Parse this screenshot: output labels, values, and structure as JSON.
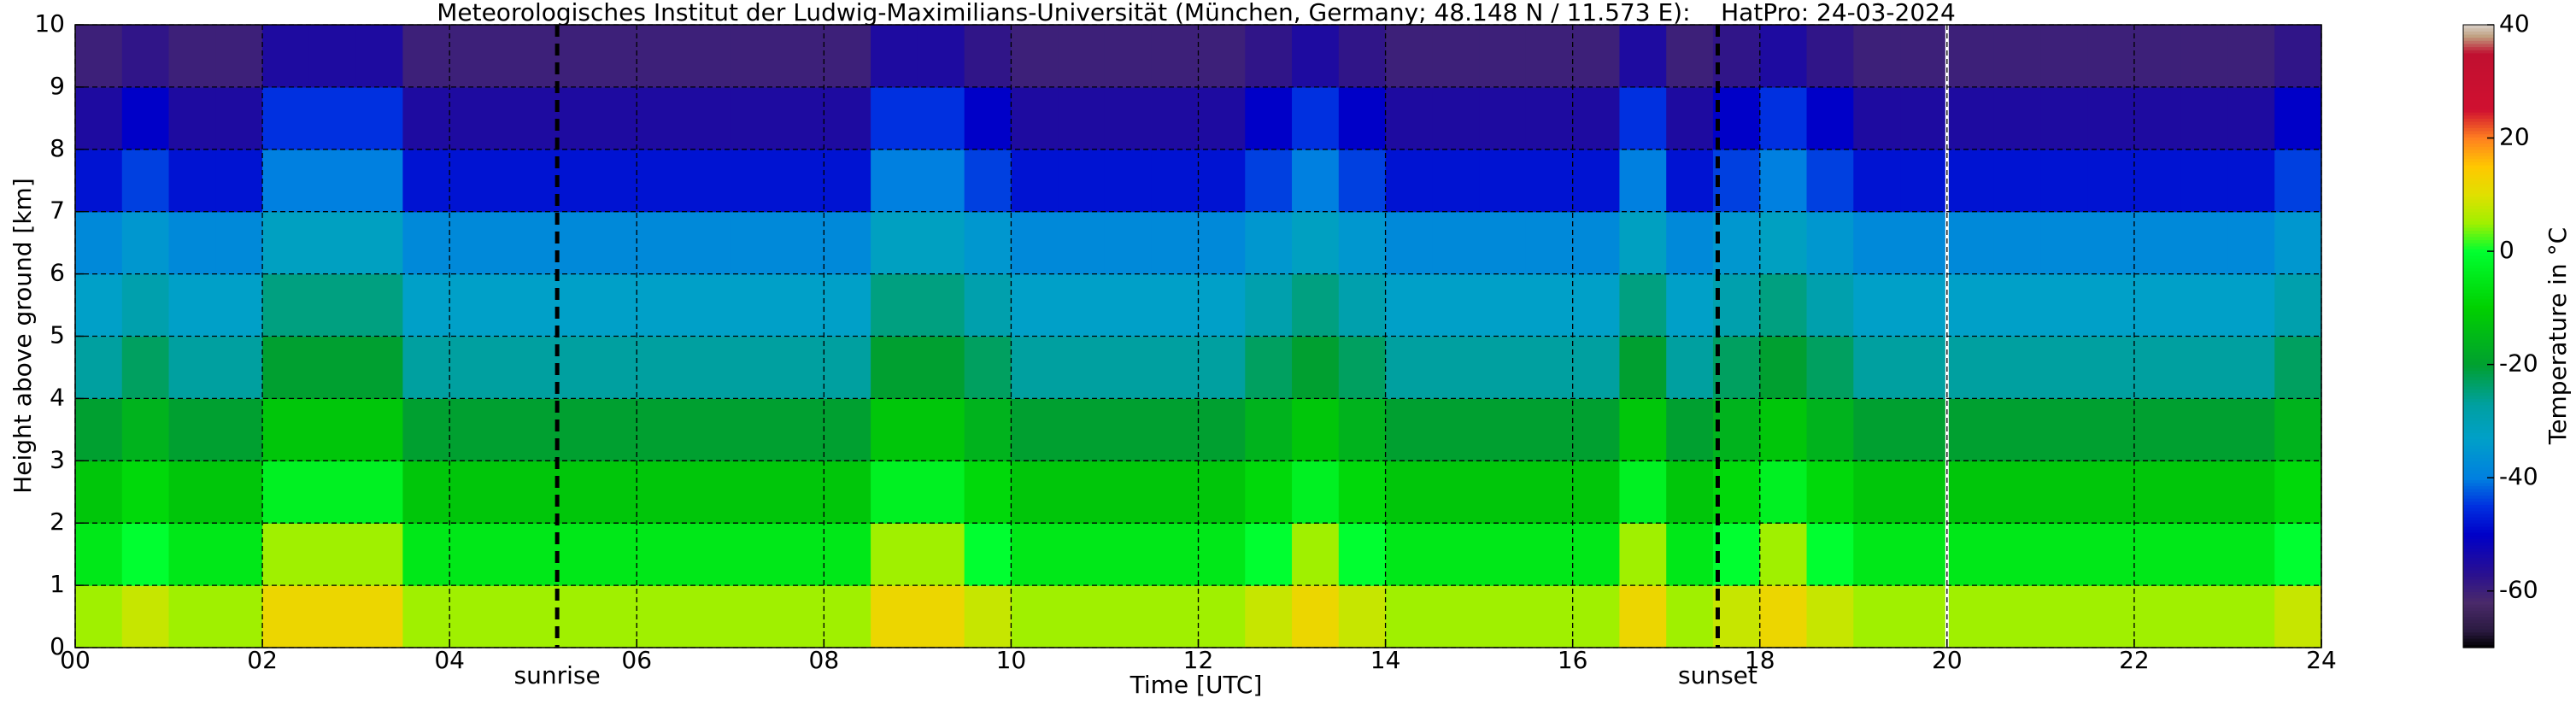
{
  "chart_data": {
    "type": "heatmap",
    "title": "Meteorologisches Institut der Ludwig-Maximilians-Universität (München, Germany; 48.148 N / 11.573 E):    HatPro: 24-03-2024",
    "xlabel": "Time [UTC]",
    "ylabel": "Height above ground [km]",
    "x": [
      0,
      0.5,
      1,
      1.5,
      2,
      2.5,
      3,
      3.5,
      4,
      4.5,
      5,
      5.5,
      6,
      6.5,
      7,
      7.5,
      8,
      8.5,
      9,
      9.5,
      10,
      10.5,
      11,
      11.5,
      12,
      12.5,
      13,
      13.5,
      14,
      14.5,
      15,
      15.5,
      16,
      16.5,
      17,
      17.5,
      18,
      18.5,
      19,
      19.5,
      20,
      20.5,
      21,
      21.5,
      22,
      22.5,
      23,
      23.5,
      24
    ],
    "y": [
      0,
      1,
      2,
      3,
      4,
      5,
      6,
      7,
      8,
      9,
      10
    ],
    "values": [
      [
        5,
        8,
        5,
        5,
        12,
        12,
        12,
        5,
        5,
        5,
        5,
        5,
        5,
        5,
        5,
        5,
        5,
        12,
        12,
        8,
        5,
        5,
        5,
        5,
        5,
        8,
        12,
        8,
        5,
        5,
        5,
        5,
        5,
        12,
        5,
        8,
        12,
        8,
        5,
        5,
        5,
        5,
        5,
        5,
        5,
        5,
        5,
        8
      ],
      [
        -5,
        0,
        -5,
        -5,
        5,
        5,
        5,
        -5,
        -5,
        -5,
        -5,
        -5,
        -5,
        -5,
        -5,
        -5,
        -5,
        5,
        5,
        0,
        -5,
        -5,
        -5,
        -5,
        -5,
        0,
        5,
        0,
        -5,
        -5,
        -5,
        -5,
        -5,
        5,
        -5,
        0,
        5,
        0,
        -5,
        -5,
        -5,
        -5,
        -5,
        -5,
        -5,
        -5,
        -5,
        0
      ],
      [
        -12,
        -8,
        -12,
        -12,
        -3,
        -3,
        -3,
        -12,
        -12,
        -12,
        -12,
        -12,
        -12,
        -12,
        -12,
        -12,
        -12,
        -3,
        -3,
        -8,
        -12,
        -12,
        -12,
        -12,
        -12,
        -8,
        -3,
        -8,
        -12,
        -12,
        -12,
        -12,
        -12,
        -3,
        -12,
        -8,
        -3,
        -8,
        -12,
        -12,
        -12,
        -12,
        -12,
        -12,
        -12,
        -12,
        -12,
        -8
      ],
      [
        -20,
        -16,
        -20,
        -20,
        -12,
        -12,
        -12,
        -20,
        -20,
        -20,
        -20,
        -20,
        -20,
        -20,
        -20,
        -20,
        -20,
        -12,
        -12,
        -16,
        -20,
        -20,
        -20,
        -20,
        -20,
        -16,
        -12,
        -16,
        -20,
        -20,
        -20,
        -20,
        -20,
        -12,
        -20,
        -16,
        -12,
        -16,
        -20,
        -20,
        -20,
        -20,
        -20,
        -20,
        -20,
        -20,
        -20,
        -16
      ],
      [
        -27,
        -23,
        -27,
        -27,
        -20,
        -20,
        -20,
        -27,
        -27,
        -27,
        -27,
        -27,
        -27,
        -27,
        -27,
        -27,
        -27,
        -20,
        -20,
        -23,
        -27,
        -27,
        -27,
        -27,
        -27,
        -23,
        -20,
        -23,
        -27,
        -27,
        -27,
        -27,
        -27,
        -20,
        -27,
        -23,
        -20,
        -23,
        -27,
        -27,
        -27,
        -27,
        -27,
        -27,
        -27,
        -27,
        -27,
        -23
      ],
      [
        -33,
        -29,
        -33,
        -33,
        -25,
        -25,
        -25,
        -33,
        -33,
        -33,
        -33,
        -33,
        -33,
        -33,
        -33,
        -33,
        -33,
        -25,
        -25,
        -29,
        -33,
        -33,
        -33,
        -33,
        -33,
        -29,
        -25,
        -29,
        -33,
        -33,
        -33,
        -33,
        -33,
        -25,
        -33,
        -29,
        -25,
        -29,
        -33,
        -33,
        -33,
        -33,
        -33,
        -33,
        -33,
        -33,
        -33,
        -29
      ],
      [
        -38,
        -35,
        -38,
        -38,
        -32,
        -32,
        -32,
        -38,
        -38,
        -38,
        -38,
        -38,
        -38,
        -38,
        -38,
        -38,
        -38,
        -32,
        -32,
        -35,
        -38,
        -38,
        -38,
        -38,
        -38,
        -35,
        -32,
        -35,
        -38,
        -38,
        -38,
        -38,
        -38,
        -32,
        -38,
        -35,
        -32,
        -35,
        -38,
        -38,
        -38,
        -38,
        -38,
        -38,
        -38,
        -38,
        -38,
        -35
      ],
      [
        -48,
        -44,
        -48,
        -48,
        -40,
        -40,
        -40,
        -48,
        -48,
        -48,
        -48,
        -48,
        -48,
        -48,
        -48,
        -48,
        -48,
        -40,
        -40,
        -44,
        -48,
        -48,
        -48,
        -48,
        -48,
        -44,
        -40,
        -44,
        -48,
        -48,
        -48,
        -48,
        -48,
        -40,
        -48,
        -44,
        -40,
        -44,
        -48,
        -48,
        -48,
        -48,
        -48,
        -48,
        -48,
        -48,
        -48,
        -44
      ],
      [
        -55,
        -50,
        -55,
        -55,
        -45,
        -45,
        -45,
        -55,
        -55,
        -55,
        -55,
        -55,
        -55,
        -55,
        -55,
        -55,
        -55,
        -45,
        -45,
        -50,
        -55,
        -55,
        -55,
        -55,
        -55,
        -50,
        -45,
        -50,
        -55,
        -55,
        -55,
        -55,
        -55,
        -45,
        -55,
        -50,
        -45,
        -50,
        -55,
        -55,
        -55,
        -55,
        -55,
        -55,
        -55,
        -55,
        -55,
        -50
      ],
      [
        -60,
        -58,
        -60,
        -60,
        -55,
        -55,
        -55,
        -60,
        -60,
        -60,
        -60,
        -60,
        -60,
        -60,
        -60,
        -60,
        -60,
        -55,
        -55,
        -58,
        -60,
        -60,
        -60,
        -60,
        -60,
        -58,
        -55,
        -58,
        -60,
        -60,
        -60,
        -60,
        -60,
        -55,
        -60,
        -58,
        -55,
        -58,
        -60,
        -60,
        -60,
        -60,
        -60,
        -60,
        -60,
        -60,
        -60,
        -58
      ]
    ],
    "xlim": [
      0,
      24
    ],
    "ylim": [
      0,
      10
    ],
    "xticks": [
      {
        "value": 0,
        "label": "00"
      },
      {
        "value": 2,
        "label": "02"
      },
      {
        "value": 4,
        "label": "04"
      },
      {
        "value": 6,
        "label": "06"
      },
      {
        "value": 8,
        "label": "08"
      },
      10,
      12,
      14,
      16,
      18,
      20,
      22,
      24
    ],
    "yticks": [
      0,
      1,
      2,
      3,
      4,
      5,
      6,
      7,
      8,
      9,
      10
    ],
    "grid": true,
    "markers": [
      {
        "label": "sunrise",
        "x": 5.15
      },
      {
        "label": "sunset",
        "x": 17.55
      }
    ],
    "gap_x": [
      20
    ],
    "colorbar": {
      "label": "Temperature in °C",
      "clim": [
        -70,
        40
      ],
      "ticks": [
        -60,
        -40,
        -20,
        0,
        20,
        40
      ],
      "colorscale": [
        [
          -70,
          "#000000"
        ],
        [
          -67,
          "#2a1a40"
        ],
        [
          -62,
          "#4a2a6a"
        ],
        [
          -57,
          "#2a1090"
        ],
        [
          -50,
          "#0000c8"
        ],
        [
          -45,
          "#0030e0"
        ],
        [
          -40,
          "#0080e0"
        ],
        [
          -33,
          "#00a0c8"
        ],
        [
          -27,
          "#00a0a0"
        ],
        [
          -20,
          "#00a030"
        ],
        [
          -10,
          "#00d000"
        ],
        [
          0,
          "#00ff30"
        ],
        [
          5,
          "#a0f000"
        ],
        [
          10,
          "#e0e000"
        ],
        [
          15,
          "#ffc800"
        ],
        [
          20,
          "#ff8020"
        ],
        [
          25,
          "#d01030"
        ],
        [
          35,
          "#c01030"
        ],
        [
          38,
          "#c0a080"
        ],
        [
          40,
          "#d8d0c8"
        ]
      ]
    }
  }
}
